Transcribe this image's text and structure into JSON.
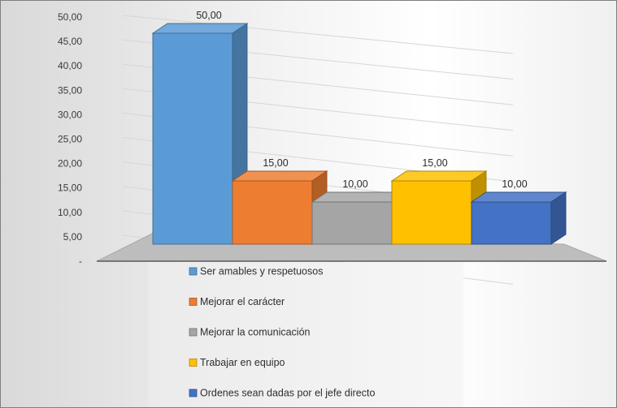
{
  "chart_data": {
    "type": "bar",
    "title": "",
    "xlabel": "",
    "ylabel": "",
    "ylim": [
      0,
      50
    ],
    "yticks": [
      "-",
      "5,00",
      "10,00",
      "15,00",
      "20,00",
      "25,00",
      "30,00",
      "35,00",
      "40,00",
      "45,00",
      "50,00"
    ],
    "grid": true,
    "legend_position": "bottom",
    "series": [
      {
        "name": "Ser amables y respetuosos",
        "value": 50,
        "label": "50,00",
        "color": "#5b9bd5"
      },
      {
        "name": "Mejorar el carácter",
        "value": 15,
        "label": "15,00",
        "color": "#ed7d31"
      },
      {
        "name": "Mejorar la comunicación",
        "value": 10,
        "label": "10,00",
        "color": "#a5a5a5"
      },
      {
        "name": "Trabajar en equipo",
        "value": 15,
        "label": "15,00",
        "color": "#ffc000"
      },
      {
        "name": "Ordenes sean dadas por el jefe directo",
        "value": 10,
        "label": "10,00",
        "color": "#4472c4"
      }
    ]
  }
}
